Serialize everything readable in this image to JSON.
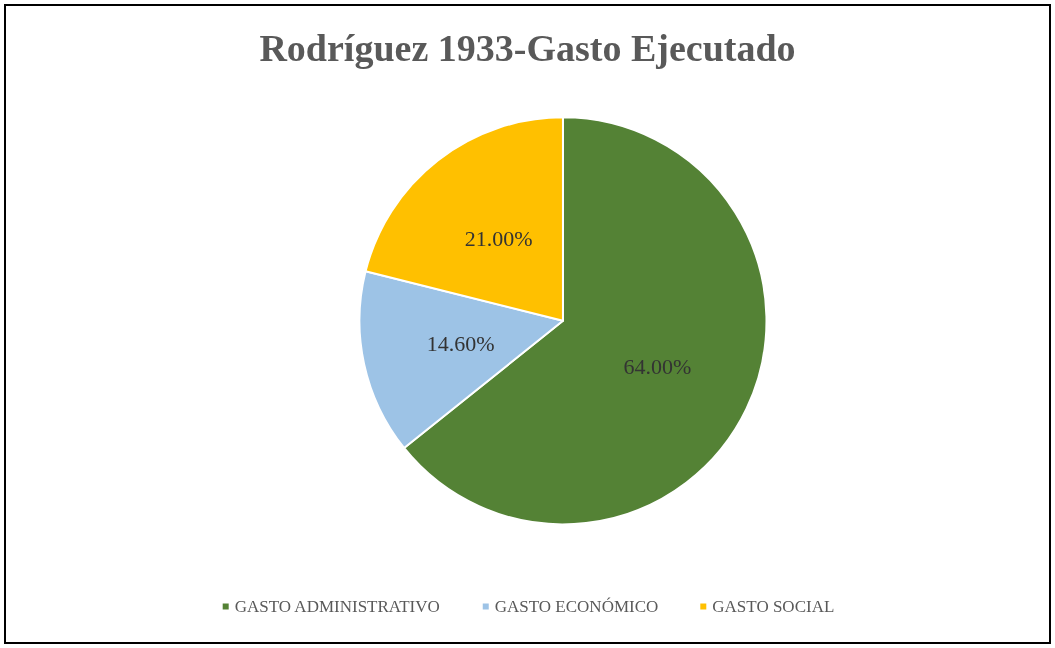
{
  "chart_data": {
    "type": "pie",
    "title": "Rodríguez 1933-Gasto Ejecutado",
    "categories": [
      "GASTO ADMINISTRATIVO",
      "GASTO ECONÓMICO",
      "GASTO SOCIAL"
    ],
    "values": [
      64,
      14.6,
      21
    ],
    "value_labels": [
      "64.00%",
      "14.60%",
      "21.00%"
    ],
    "colors": [
      "#548235",
      "#9dc3e6",
      "#ffc000"
    ],
    "legend": "bottom"
  }
}
